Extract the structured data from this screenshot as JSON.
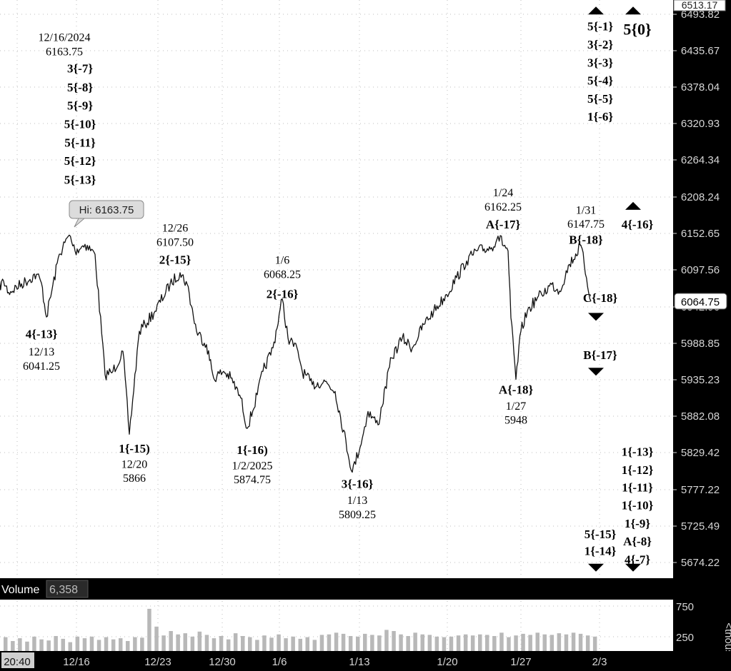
{
  "chart_data": {
    "type": "line",
    "title": "",
    "y_axis": {
      "ticks": [
        6493.82,
        6435.67,
        6378.04,
        6320.93,
        6264.34,
        6208.24,
        6152.65,
        6097.56,
        6042.96,
        5988.85,
        5935.23,
        5882.08,
        5829.42,
        5777.22,
        5725.49,
        5674.22
      ],
      "tick_labels": [
        "6493.82",
        "6435.67",
        "6378.04",
        "6320.93",
        "6264.34",
        "6208.24",
        "6152.65",
        "6097.56",
        "6042.96",
        "5988.85",
        "5935.23",
        "5882.08",
        "5829.42",
        "5777.22",
        "5725.49",
        "5674.22"
      ],
      "top_label": "6513.17",
      "last_price_label": "6064.75",
      "last_price": 6064.75
    },
    "x_axis": {
      "tick_labels": [
        "20:40",
        "12/16",
        "12/23",
        "12/30",
        "1/6",
        "1/13",
        "1/20",
        "1/27",
        "2/3"
      ]
    },
    "grid": true,
    "hi_callout": "Hi: 6163.75",
    "price_series": {
      "name": "",
      "points": [
        [
          "12/12",
          6085
        ],
        [
          "12/12",
          6095
        ],
        [
          "12/12",
          6078
        ],
        [
          "12/13",
          6105
        ],
        [
          "12/13",
          6092
        ],
        [
          "12/13",
          6041.25
        ],
        [
          "12/16",
          6135
        ],
        [
          "12/16",
          6163.75
        ],
        [
          "12/17",
          6140
        ],
        [
          "12/17",
          6150
        ],
        [
          "12/18",
          6135
        ],
        [
          "12/18",
          5955
        ],
        [
          "12/19",
          5960
        ],
        [
          "12/19",
          5990
        ],
        [
          "12/20",
          5866
        ],
        [
          "12/20",
          6020
        ],
        [
          "12/23",
          6030
        ],
        [
          "12/23",
          6050
        ],
        [
          "12/24",
          6090
        ],
        [
          "12/24",
          6107.5
        ],
        [
          "12/26",
          6090
        ],
        [
          "12/27",
          6020
        ],
        [
          "12/27",
          6000
        ],
        [
          "12/30",
          5950
        ],
        [
          "12/30",
          5960
        ],
        [
          "12/31",
          5950
        ],
        [
          "12/31",
          5920
        ],
        [
          "1/2",
          5874.75
        ],
        [
          "1/2",
          5925
        ],
        [
          "1/3",
          5960
        ],
        [
          "1/3",
          5995
        ],
        [
          "1/6",
          6068.25
        ],
        [
          "1/7",
          6010
        ],
        [
          "1/7",
          5990
        ],
        [
          "1/8",
          5960
        ],
        [
          "1/8",
          5940
        ],
        [
          "1/10",
          5945
        ],
        [
          "1/10",
          5930
        ],
        [
          "1/13",
          5809.25
        ],
        [
          "1/13",
          5860
        ],
        [
          "1/14",
          5900
        ],
        [
          "1/14",
          5880
        ],
        [
          "1/15",
          5980
        ],
        [
          "1/16",
          6010
        ],
        [
          "1/16",
          5995
        ],
        [
          "1/17",
          6030
        ],
        [
          "1/17",
          6050
        ],
        [
          "1/21",
          6075
        ],
        [
          "1/21",
          6100
        ],
        [
          "1/22",
          6125
        ],
        [
          "1/22",
          6140
        ],
        [
          "1/23",
          6145
        ],
        [
          "1/24",
          6162.25
        ],
        [
          "1/24",
          6140
        ],
        [
          "1/27",
          6040
        ],
        [
          "1/27",
          5948
        ],
        [
          "1/27",
          6020
        ],
        [
          "1/28",
          6050
        ],
        [
          "1/28",
          6070
        ],
        [
          "1/29",
          6075
        ],
        [
          "1/29",
          6090
        ],
        [
          "1/30",
          6080
        ],
        [
          "1/30",
          6120
        ],
        [
          "1/31",
          6147.75
        ],
        [
          "1/31",
          6064.75
        ]
      ]
    },
    "volume_series": {
      "label": "Volume",
      "last_value_label": "6,358",
      "axis_ticks": [
        750,
        250
      ],
      "axis_tick_labels": [
        "750",
        "250"
      ],
      "axis_unit_label": "<thous",
      "values": [
        250,
        180,
        230,
        170,
        260,
        210,
        190,
        270,
        220,
        160,
        260,
        230,
        260,
        200,
        250,
        210,
        230,
        180,
        250,
        240,
        760,
        440,
        280,
        360,
        300,
        320,
        260,
        350,
        290,
        230,
        270,
        210,
        320,
        270,
        250,
        200,
        280,
        240,
        300,
        230,
        260,
        220,
        250,
        200,
        290,
        300,
        330,
        310,
        270,
        260,
        310,
        290,
        280,
        380,
        360,
        300,
        270,
        330,
        300,
        290,
        260,
        250,
        260,
        280,
        300,
        280,
        300,
        290,
        270,
        330,
        250,
        280,
        310,
        290,
        330,
        300,
        290,
        320,
        300,
        330,
        310,
        280,
        260
      ]
    },
    "annotations": [
      {
        "text": "12/16/2024",
        "date": "12/16",
        "price": 6460,
        "style": "date"
      },
      {
        "text": "6163.75",
        "date": "12/16",
        "price": 6439,
        "style": "date"
      },
      {
        "text": "3{-7}",
        "date": "12/17",
        "price": 6413,
        "style": "label"
      },
      {
        "text": "5{-8}",
        "date": "12/17",
        "price": 6385,
        "style": "label"
      },
      {
        "text": "5{-9}",
        "date": "12/17",
        "price": 6358,
        "style": "label"
      },
      {
        "text": "5{-10}",
        "date": "12/17",
        "price": 6330,
        "style": "label"
      },
      {
        "text": "5{-11}",
        "date": "12/17",
        "price": 6302,
        "style": "label"
      },
      {
        "text": "5{-12}",
        "date": "12/17",
        "price": 6275,
        "style": "label"
      },
      {
        "text": "5{-13}",
        "date": "12/17",
        "price": 6247,
        "style": "label"
      },
      {
        "text": "4{-13}",
        "date": "12/13",
        "price": 6016,
        "style": "label"
      },
      {
        "text": "12/13",
        "date": "12/13",
        "price": 5990,
        "style": "date"
      },
      {
        "text": "6041.25",
        "date": "12/13",
        "price": 5969,
        "style": "date"
      },
      {
        "text": "12/26",
        "date": "12/24",
        "price": 6175,
        "style": "date"
      },
      {
        "text": "6107.50",
        "date": "12/24",
        "price": 6154,
        "style": "date"
      },
      {
        "text": "2{-15}",
        "date": "12/24",
        "price": 6127,
        "style": "label"
      },
      {
        "text": "1{-15)",
        "date": "12/20",
        "price": 5845,
        "style": "label"
      },
      {
        "text": "12/20",
        "date": "12/20",
        "price": 5822,
        "style": "date"
      },
      {
        "text": "5866",
        "date": "12/20",
        "price": 5801,
        "style": "date"
      },
      {
        "text": "1/6",
        "date": "1/6",
        "price": 6127,
        "style": "date"
      },
      {
        "text": "6068.25",
        "date": "1/6",
        "price": 6106,
        "style": "date"
      },
      {
        "text": "2{-16}",
        "date": "1/6",
        "price": 6076,
        "style": "label"
      },
      {
        "text": "1{-16)",
        "date": "1/2",
        "price": 5843,
        "style": "label"
      },
      {
        "text": "1/2/2025",
        "date": "1/2",
        "price": 5820,
        "style": "date"
      },
      {
        "text": "5874.75",
        "date": "1/2",
        "price": 5799,
        "style": "date"
      },
      {
        "text": "3{-16}",
        "date": "1/13",
        "price": 5792,
        "style": "label"
      },
      {
        "text": "1/13",
        "date": "1/13",
        "price": 5768,
        "style": "date"
      },
      {
        "text": "5809.25",
        "date": "1/13",
        "price": 5747,
        "style": "date"
      },
      {
        "text": "1/24",
        "date": "1/24",
        "price": 6228,
        "style": "date"
      },
      {
        "text": "6162.25",
        "date": "1/24",
        "price": 6207,
        "style": "date"
      },
      {
        "text": "A{-17}",
        "date": "1/24",
        "price": 6180,
        "style": "label"
      },
      {
        "text": "A{-18}",
        "date": "1/27",
        "price": 5933,
        "style": "label"
      },
      {
        "text": "1/27",
        "date": "1/27",
        "price": 5909,
        "style": "date"
      },
      {
        "text": "5948",
        "date": "1/27",
        "price": 5888,
        "style": "date"
      },
      {
        "text": "1/31",
        "date": "1/31",
        "price": 6202,
        "style": "date"
      },
      {
        "text": "6147.75",
        "date": "1/31",
        "price": 6181,
        "style": "date"
      },
      {
        "text": "B{-18}",
        "date": "1/31",
        "price": 6157,
        "style": "label"
      },
      {
        "text": "C{-18}",
        "date": "2/3",
        "price": 6070,
        "style": "label"
      },
      {
        "text": "B{-17}",
        "date": "2/3",
        "price": 5985,
        "style": "label"
      },
      {
        "text": "5{-1}",
        "date": "2/3",
        "price": 6476,
        "style": "label"
      },
      {
        "text": "3{-2}",
        "date": "2/3",
        "price": 6449,
        "style": "label"
      },
      {
        "text": "3{-3}",
        "date": "2/3",
        "price": 6422,
        "style": "label"
      },
      {
        "text": "5{-4}",
        "date": "2/3",
        "price": 6395,
        "style": "label"
      },
      {
        "text": "5{-5}",
        "date": "2/3",
        "price": 6368,
        "style": "label"
      },
      {
        "text": "1{-6}",
        "date": "2/3",
        "price": 6341,
        "style": "label"
      },
      {
        "text": "5{0}",
        "date": "2/5",
        "price": 6470,
        "style": "big"
      },
      {
        "text": "4{-16}",
        "date": "2/5",
        "price": 6180,
        "style": "label"
      },
      {
        "text": "5{-15}",
        "date": "2/3",
        "price": 5717,
        "style": "label"
      },
      {
        "text": "1{-14}",
        "date": "2/3",
        "price": 5692,
        "style": "label"
      },
      {
        "text": "1{-13}",
        "date": "2/5",
        "price": 5840,
        "style": "label"
      },
      {
        "text": "1{-12}",
        "date": "2/5",
        "price": 5813,
        "style": "label"
      },
      {
        "text": "1{-11}",
        "date": "2/5",
        "price": 5787,
        "style": "label"
      },
      {
        "text": "1{-10}",
        "date": "2/5",
        "price": 5760,
        "style": "label"
      },
      {
        "text": "1{-9}",
        "date": "2/5",
        "price": 5733,
        "style": "label"
      },
      {
        "text": "A{-8}",
        "date": "2/5",
        "price": 5706,
        "style": "label"
      },
      {
        "text": "4{-7}",
        "date": "2/5",
        "price": 5679,
        "style": "label"
      }
    ],
    "markers": [
      {
        "date": "2/3",
        "price": 6500,
        "direction": "up"
      },
      {
        "date": "2/5",
        "price": 6500,
        "direction": "up"
      },
      {
        "date": "2/5",
        "price": 6208,
        "direction": "up"
      },
      {
        "date": "2/3",
        "price": 6042,
        "direction": "down"
      },
      {
        "date": "2/3",
        "price": 5960,
        "direction": "down"
      },
      {
        "date": "2/3",
        "price": 5667,
        "direction": "down"
      },
      {
        "date": "2/5",
        "price": 5667,
        "direction": "down"
      }
    ],
    "colors": {
      "price_line": "#111111",
      "volume_bars": "#b8b8b8",
      "axis_panel": "#000000",
      "axis_text": "#d6d6d6",
      "label_text": "#000000",
      "grid": "#bdbdbd"
    }
  }
}
